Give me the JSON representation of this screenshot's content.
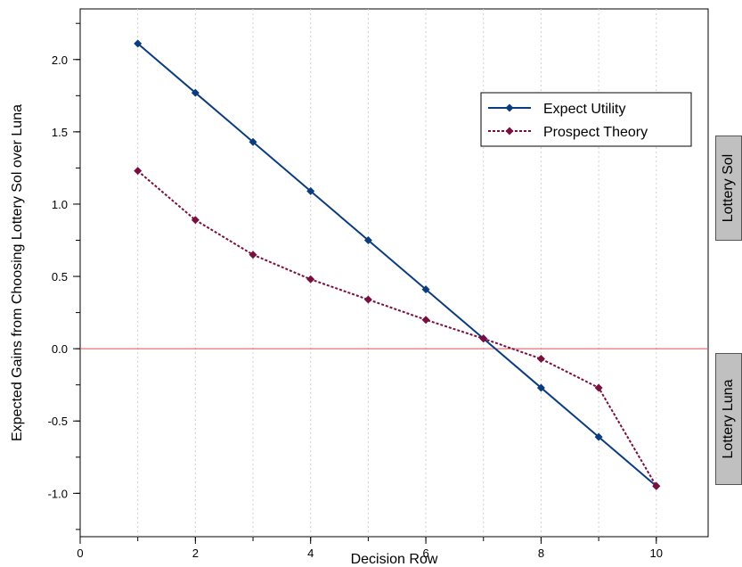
{
  "chart_data": {
    "type": "line",
    "xlabel": "Decision Row",
    "ylabel": "Expected Gains from Choosing Lottery Sol over Luna",
    "xlim": [
      0,
      10.9
    ],
    "ylim": [
      -1.3,
      2.35
    ],
    "x_ticks": [
      0,
      2,
      4,
      6,
      8,
      10
    ],
    "x_tick_labels": [
      "0",
      "2",
      "4",
      "6",
      "8",
      "10"
    ],
    "y_ticks": [
      2.0,
      1.5,
      1.0,
      0.5,
      0.0,
      -0.5,
      -1.0
    ],
    "y_tick_labels": [
      "2.0",
      "1.5",
      "1.0",
      "0.5",
      "0.0",
      "-0.5",
      "-1.0"
    ],
    "vertical_grid": true,
    "reference_line": {
      "y": 0,
      "color": "#e05050"
    },
    "legend_position": "upper-right",
    "series": [
      {
        "name": "Expect Utility",
        "color": "#0b3d7e",
        "style": "solid",
        "x": [
          1,
          2,
          3,
          4,
          5,
          6,
          7,
          8,
          9,
          10
        ],
        "values": [
          2.11,
          1.77,
          1.43,
          1.09,
          0.75,
          0.41,
          0.07,
          -0.27,
          -0.61,
          -0.95
        ]
      },
      {
        "name": "Prospect Theory",
        "color": "#7a0f3f",
        "style": "dotted",
        "x": [
          1,
          2,
          3,
          4,
          5,
          6,
          7,
          8,
          9,
          10
        ],
        "values": [
          1.23,
          0.89,
          0.65,
          0.48,
          0.34,
          0.2,
          0.07,
          -0.07,
          -0.27,
          -0.95
        ]
      }
    ]
  },
  "side_labels": {
    "top": "Lottery Sol",
    "bottom": "Lottery Luna"
  }
}
